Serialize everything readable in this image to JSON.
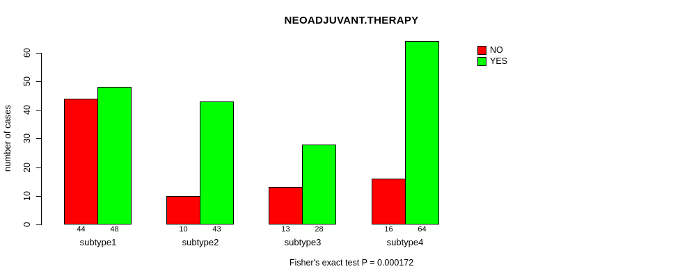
{
  "title": "NEOADJUVANT.THERAPY",
  "subtitle": "Fisher's exact test P = 0.000172",
  "chart_data": {
    "type": "bar",
    "grouped": true,
    "title": "NEOADJUVANT.THERAPY",
    "xlabel": "",
    "ylabel": "number of cases",
    "categories": [
      "subtype1",
      "subtype2",
      "subtype3",
      "subtype4"
    ],
    "series": [
      {
        "name": "NO",
        "color": "#ff0000",
        "values": [
          44,
          10,
          13,
          16
        ]
      },
      {
        "name": "YES",
        "color": "#00ff00",
        "values": [
          48,
          43,
          28,
          64
        ]
      }
    ],
    "bar_value_labels_shown": true,
    "ylim": [
      0,
      60
    ],
    "yticks": [
      0,
      10,
      20,
      30,
      40,
      50,
      60
    ],
    "grid": false,
    "legend_position": "top-right",
    "annotation": "Fisher's exact test P = 0.000172"
  }
}
